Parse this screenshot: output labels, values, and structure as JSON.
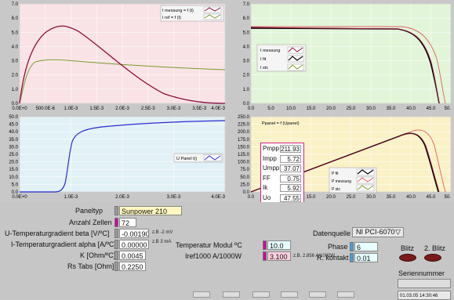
{
  "plots": {
    "top_left": {
      "legend": [
        "I messung = f (t)",
        "I ref = f (t)"
      ],
      "x_ticks": [
        "0.0E+0",
        "500.0E-6",
        "1.0E-3",
        "1.5E-3",
        "2.0E-3",
        "2.5E-3",
        "3.0E-3",
        "3.5E-3",
        "4.0E-3"
      ],
      "y_ticks": [
        "0.0",
        "1.0",
        "2.0",
        "3.0",
        "4.0",
        "5.0",
        "6.0",
        "7.0"
      ]
    },
    "top_right": {
      "legend": [
        "I messung",
        "I fit",
        "I stc"
      ],
      "x_ticks": [
        "0.0",
        "5.0",
        "10.0",
        "15.0",
        "20.0",
        "25.0",
        "30.0",
        "35.0",
        "40.0",
        "45.0",
        "50."
      ],
      "y_ticks": [
        "0.0",
        "1.0",
        "2.0",
        "3.0",
        "4.0",
        "5.0",
        "6.0",
        "7.0"
      ]
    },
    "bottom_left": {
      "legend": [
        "U Panel t()"
      ],
      "x_ticks": [
        "0.0E+0",
        "1.0E-3",
        "2.0E-3",
        "3.0E-3",
        "4.0E-3"
      ],
      "y_ticks": [
        "0.0",
        "5.0",
        "10.0",
        "15.0",
        "20.0",
        "25.0",
        "30.0",
        "35.0",
        "40.0",
        "45.0",
        "50.0"
      ]
    },
    "bottom_right": {
      "title": "Ppanel = f (Upanel)",
      "legend": [
        "P fit",
        "P messung",
        "P stc"
      ],
      "x_ticks": [
        "0.0",
        "5.0",
        "10.0",
        "15.0",
        "20.0",
        "25.0",
        "30.0",
        "35.0",
        "40.0",
        "45.0",
        "50."
      ],
      "y_ticks": [
        "0.0",
        "25.0",
        "50.0",
        "75.0",
        "100.0",
        "125.0",
        "150.0",
        "175.0",
        "200.0",
        "225.0",
        "250.0"
      ],
      "results": [
        {
          "label": "Pmpp",
          "value": "211.93"
        },
        {
          "label": "Impp",
          "value": "5.72"
        },
        {
          "label": "Umpp",
          "value": "37.07"
        },
        {
          "label": "FF",
          "value": "0.75"
        },
        {
          "label": "Ik",
          "value": "5.92"
        },
        {
          "label": "Uo",
          "value": "47.55"
        }
      ]
    }
  },
  "controls": {
    "paneltyp_label": "Paneltyp",
    "paneltyp_value": "Sunpower 210",
    "zellen_label": "Anzahl Zellen",
    "zellen_value": "72",
    "u_temp_label": "U-Temperaturgradient beta [V/ºC]",
    "u_temp_value": "-0.00190",
    "u_temp_note": "z.B -2 mV",
    "i_temp_label": "I-Temperaturgradient alpha [A/ºC]",
    "i_temp_value": "0.00000",
    "i_temp_note": "z.B 3 mA",
    "k_label": "K [Ohm/ºC]",
    "k_value": "0.0045",
    "rs_label": "Rs Tabs [Ohm]",
    "rs_value": "0.2250",
    "temp_label": "Temperatur Modul ºC",
    "temp_value": "10.0",
    "iref_label": "Iref1000 A/1000W",
    "iref_value": "3.100",
    "iref_note": "z.B. 2.856 A/1000W",
    "datenquelle_label": "Datenquelle",
    "datenquelle_value": "NI PCI-6070",
    "phase_label": "Phase",
    "phase_value": "6",
    "rkontakt_label": "R. kontakt",
    "rkontakt_value": "0.01",
    "blitz_label": "Blitz",
    "blitz2_label": "2. Blitz",
    "serien_label": "Seriennummer",
    "timestamp": "01.03.05 14:30:46"
  },
  "colors": {
    "measured": "#8b0a3a",
    "reference": "#7a9a2a",
    "fit": "#000000",
    "stc": "#e06060",
    "upanel": "#2a2ad0",
    "result_border": "#d0208a"
  }
}
